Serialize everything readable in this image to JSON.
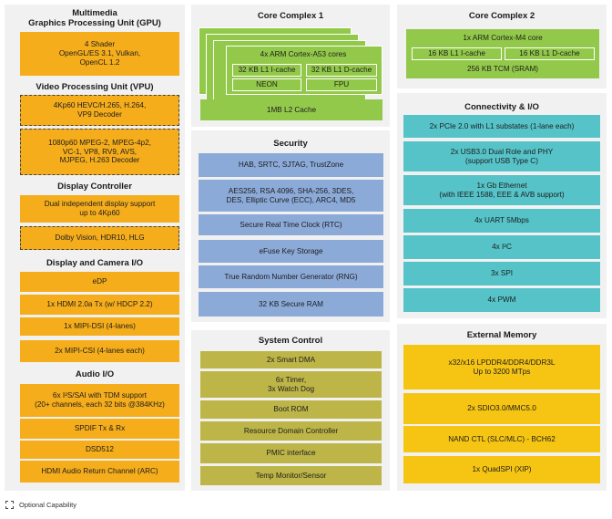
{
  "gpu": {
    "title": "Multimedia\nGraphics Processing Unit (GPU)",
    "box": "4 Shader\nOpenGL/ES 3.1, Vulkan,\nOpenCL 1.2"
  },
  "vpu": {
    "title": "Video Processing Unit (VPU)",
    "decoder1": "4Kp60 HEVC/H.265, H.264,\nVP9 Decoder",
    "decoder2": "1080p60 MPEG-2, MPEG-4p2,\nVC-1, VP8, RV9, AVS,\nMJPEG, H.263 Decoder"
  },
  "display_controller": {
    "title": "Display Controller",
    "box1": "Dual independent display support\nup to 4Kp60",
    "box2": "Dolby Vision, HDR10, HLG"
  },
  "display_camera_io": {
    "title": "Display and Camera I/O",
    "items": [
      "eDP",
      "1x HDMI 2.0a Tx (w/ HDCP 2.2)",
      "1x MIPI-DSI (4-lanes)",
      "2x MIPI-CSI (4-lanes each)"
    ]
  },
  "audio_io": {
    "title": "Audio I/O",
    "items": [
      "6x I²S/SAI with TDM support\n(20+ channels, each 32 bits @384KHz)",
      "SPDIF Tx & Rx",
      "DSD512",
      "HDMI Audio Return Channel (ARC)"
    ]
  },
  "core_complex_1": {
    "title": "Core Complex 1",
    "cores": "4x ARM Cortex-A53 cores",
    "icache": "32 KB L1 I-cache",
    "dcache": "32 KB L1 D-cache",
    "neon": "NEON",
    "fpu": "FPU",
    "l2": "1MB L2 Cache"
  },
  "security": {
    "title": "Security",
    "items": [
      "HAB, SRTC, SJTAG, TrustZone",
      "AES256, RSA 4096, SHA-256, 3DES,\nDES, Elliptic Curve (ECC), ARC4, MD5",
      "Secure Real Time Clock (RTC)",
      "eFuse Key Storage",
      "True Random Number Generator (RNG)",
      "32 KB Secure RAM"
    ]
  },
  "system_control": {
    "title": "System Control",
    "items": [
      "2x Smart DMA",
      "6x Timer,\n3x Watch Dog",
      "Boot ROM",
      "Resource Domain Controller",
      "PMIC interface",
      "Temp Monitor/Sensor"
    ]
  },
  "core_complex_2": {
    "title": "Core Complex 2",
    "core": "1x ARM Cortex-M4 core",
    "icache": "16 KB L1  I-cache",
    "dcache": "16 KB L1 D-cache",
    "tcm": "256 KB TCM (SRAM)"
  },
  "connectivity": {
    "title": "Connectivity & I/O",
    "items": [
      "2x PCIe 2.0 with L1 substates (1-lane each)",
      "2x USB3.0 Dual Role and PHY\n(support USB Type C)",
      "1x Gb Ethernet\n(with IEEE 1588, EEE & AVB support)",
      "4x UART 5Mbps",
      "4x I²C",
      "3x SPI",
      "4x PWM"
    ]
  },
  "external_memory": {
    "title": "External Memory",
    "items": [
      "x32/x16 LPDDR4/DDR4/DDR3L\nUp to 3200 MTps",
      "2x SDIO3.0/MMC5.0",
      "NAND CTL (SLC/MLC) - BCH62",
      "1x QuadSPI (XIP)"
    ]
  },
  "legend": {
    "label": "Optional Capability"
  },
  "colors": {
    "multimedia": "#f5ad1c",
    "security": "#8caad8",
    "system_control": "#bdb548",
    "connectivity": "#56c3c8",
    "memory": "#f6c413",
    "core": "#93c94a"
  }
}
